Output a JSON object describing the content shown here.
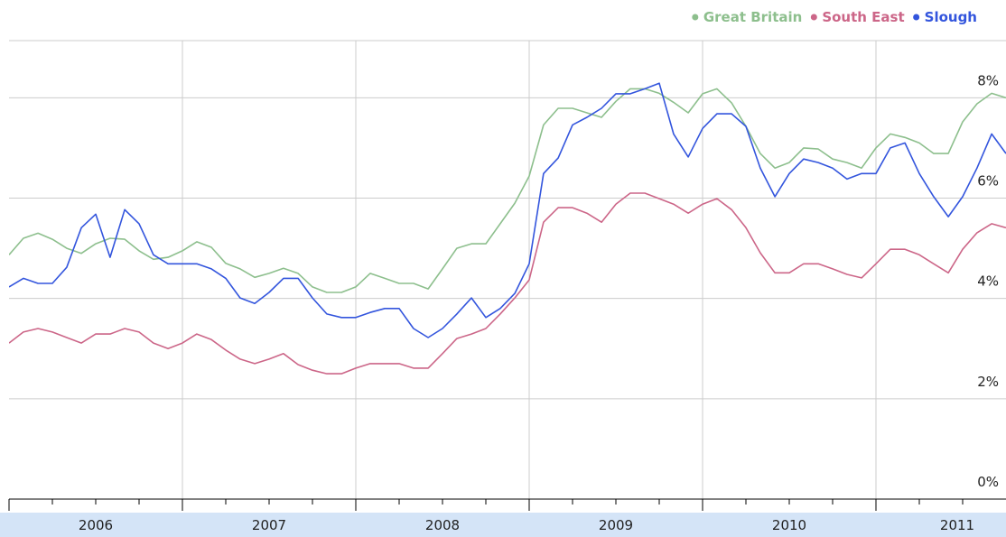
{
  "chart_data": {
    "type": "line",
    "x": [
      2006,
      2006.083,
      2006.167,
      2006.25,
      2006.333,
      2006.417,
      2006.5,
      2006.583,
      2006.667,
      2006.75,
      2006.833,
      2006.917,
      2007,
      2007.083,
      2007.167,
      2007.25,
      2007.333,
      2007.417,
      2007.5,
      2007.583,
      2007.667,
      2007.75,
      2007.833,
      2007.917,
      2008,
      2008.083,
      2008.167,
      2008.25,
      2008.333,
      2008.417,
      2008.5,
      2008.583,
      2008.667,
      2008.75,
      2008.833,
      2008.917,
      2009,
      2009.083,
      2009.167,
      2009.25,
      2009.333,
      2009.417,
      2009.5,
      2009.583,
      2009.667,
      2009.75,
      2009.833,
      2009.917,
      2010,
      2010.083,
      2010.167,
      2010.25,
      2010.333,
      2010.417,
      2010.5,
      2010.583,
      2010.667,
      2010.75,
      2010.833,
      2010.917,
      2011,
      2011.083,
      2011.167,
      2011.25,
      2011.333,
      2011.417,
      2011.5,
      2011.583,
      2011.667,
      2011.75
    ],
    "series": [
      {
        "name": "Great Britain",
        "color": "#8dbf8d",
        "values": [
          4.87,
          5.2,
          5.3,
          5.18,
          5.0,
          4.9,
          5.09,
          5.2,
          5.18,
          4.95,
          4.78,
          4.82,
          4.95,
          5.13,
          5.02,
          4.7,
          4.59,
          4.42,
          4.5,
          4.6,
          4.5,
          4.23,
          4.12,
          4.12,
          4.23,
          4.5,
          4.4,
          4.3,
          4.3,
          4.19,
          4.59,
          5.0,
          5.09,
          5.09,
          5.49,
          5.9,
          6.44,
          7.46,
          7.79,
          7.79,
          7.7,
          7.61,
          7.93,
          8.18,
          8.18,
          8.09,
          7.91,
          7.7,
          8.08,
          8.18,
          7.9,
          7.43,
          6.89,
          6.6,
          6.71,
          7.0,
          6.98,
          6.78,
          6.71,
          6.6,
          7.0,
          7.28,
          7.21,
          7.1,
          6.89,
          6.89,
          7.52,
          7.88,
          8.09,
          8.0
        ]
      },
      {
        "name": "South East",
        "color": "#cc6688",
        "values": [
          3.11,
          3.33,
          3.4,
          3.33,
          3.22,
          3.11,
          3.29,
          3.29,
          3.4,
          3.33,
          3.11,
          3.0,
          3.11,
          3.29,
          3.18,
          2.97,
          2.79,
          2.7,
          2.79,
          2.9,
          2.68,
          2.57,
          2.5,
          2.5,
          2.61,
          2.7,
          2.7,
          2.7,
          2.61,
          2.61,
          2.9,
          3.2,
          3.29,
          3.4,
          3.69,
          4.01,
          4.37,
          5.52,
          5.81,
          5.81,
          5.7,
          5.52,
          5.88,
          6.1,
          6.1,
          5.99,
          5.88,
          5.7,
          5.88,
          5.99,
          5.77,
          5.41,
          4.91,
          4.51,
          4.51,
          4.69,
          4.69,
          4.59,
          4.48,
          4.41,
          4.69,
          4.98,
          4.98,
          4.87,
          4.69,
          4.51,
          4.98,
          5.31,
          5.49,
          5.41
        ]
      },
      {
        "name": "Slough",
        "color": "#3355dd",
        "values": [
          4.23,
          4.4,
          4.3,
          4.3,
          4.62,
          5.41,
          5.68,
          4.82,
          5.77,
          5.49,
          4.87,
          4.69,
          4.69,
          4.69,
          4.59,
          4.4,
          4.01,
          3.9,
          4.12,
          4.4,
          4.4,
          4.01,
          3.69,
          3.62,
          3.62,
          3.72,
          3.8,
          3.8,
          3.4,
          3.22,
          3.4,
          3.69,
          4.01,
          3.62,
          3.8,
          4.1,
          4.69,
          6.49,
          6.8,
          7.46,
          7.61,
          7.79,
          8.08,
          8.08,
          8.18,
          8.29,
          7.28,
          6.82,
          7.39,
          7.68,
          7.68,
          7.43,
          6.6,
          6.03,
          6.49,
          6.78,
          6.71,
          6.6,
          6.38,
          6.49,
          6.49,
          7.0,
          7.1,
          6.49,
          6.03,
          5.63,
          6.03,
          6.6,
          7.28,
          6.89
        ]
      }
    ],
    "xlim": [
      2006,
      2011.75
    ],
    "xticks": [
      2006,
      2007,
      2008,
      2009,
      2010,
      2011
    ],
    "ylim": [
      0,
      9.14
    ],
    "yticks": [
      {
        "value": 0,
        "label": "0%"
      },
      {
        "value": 2,
        "label": "2%"
      },
      {
        "value": 4,
        "label": "4%"
      },
      {
        "value": 6,
        "label": "6%"
      },
      {
        "value": 8,
        "label": "8%"
      }
    ],
    "grid": true,
    "legend": "top-right"
  }
}
